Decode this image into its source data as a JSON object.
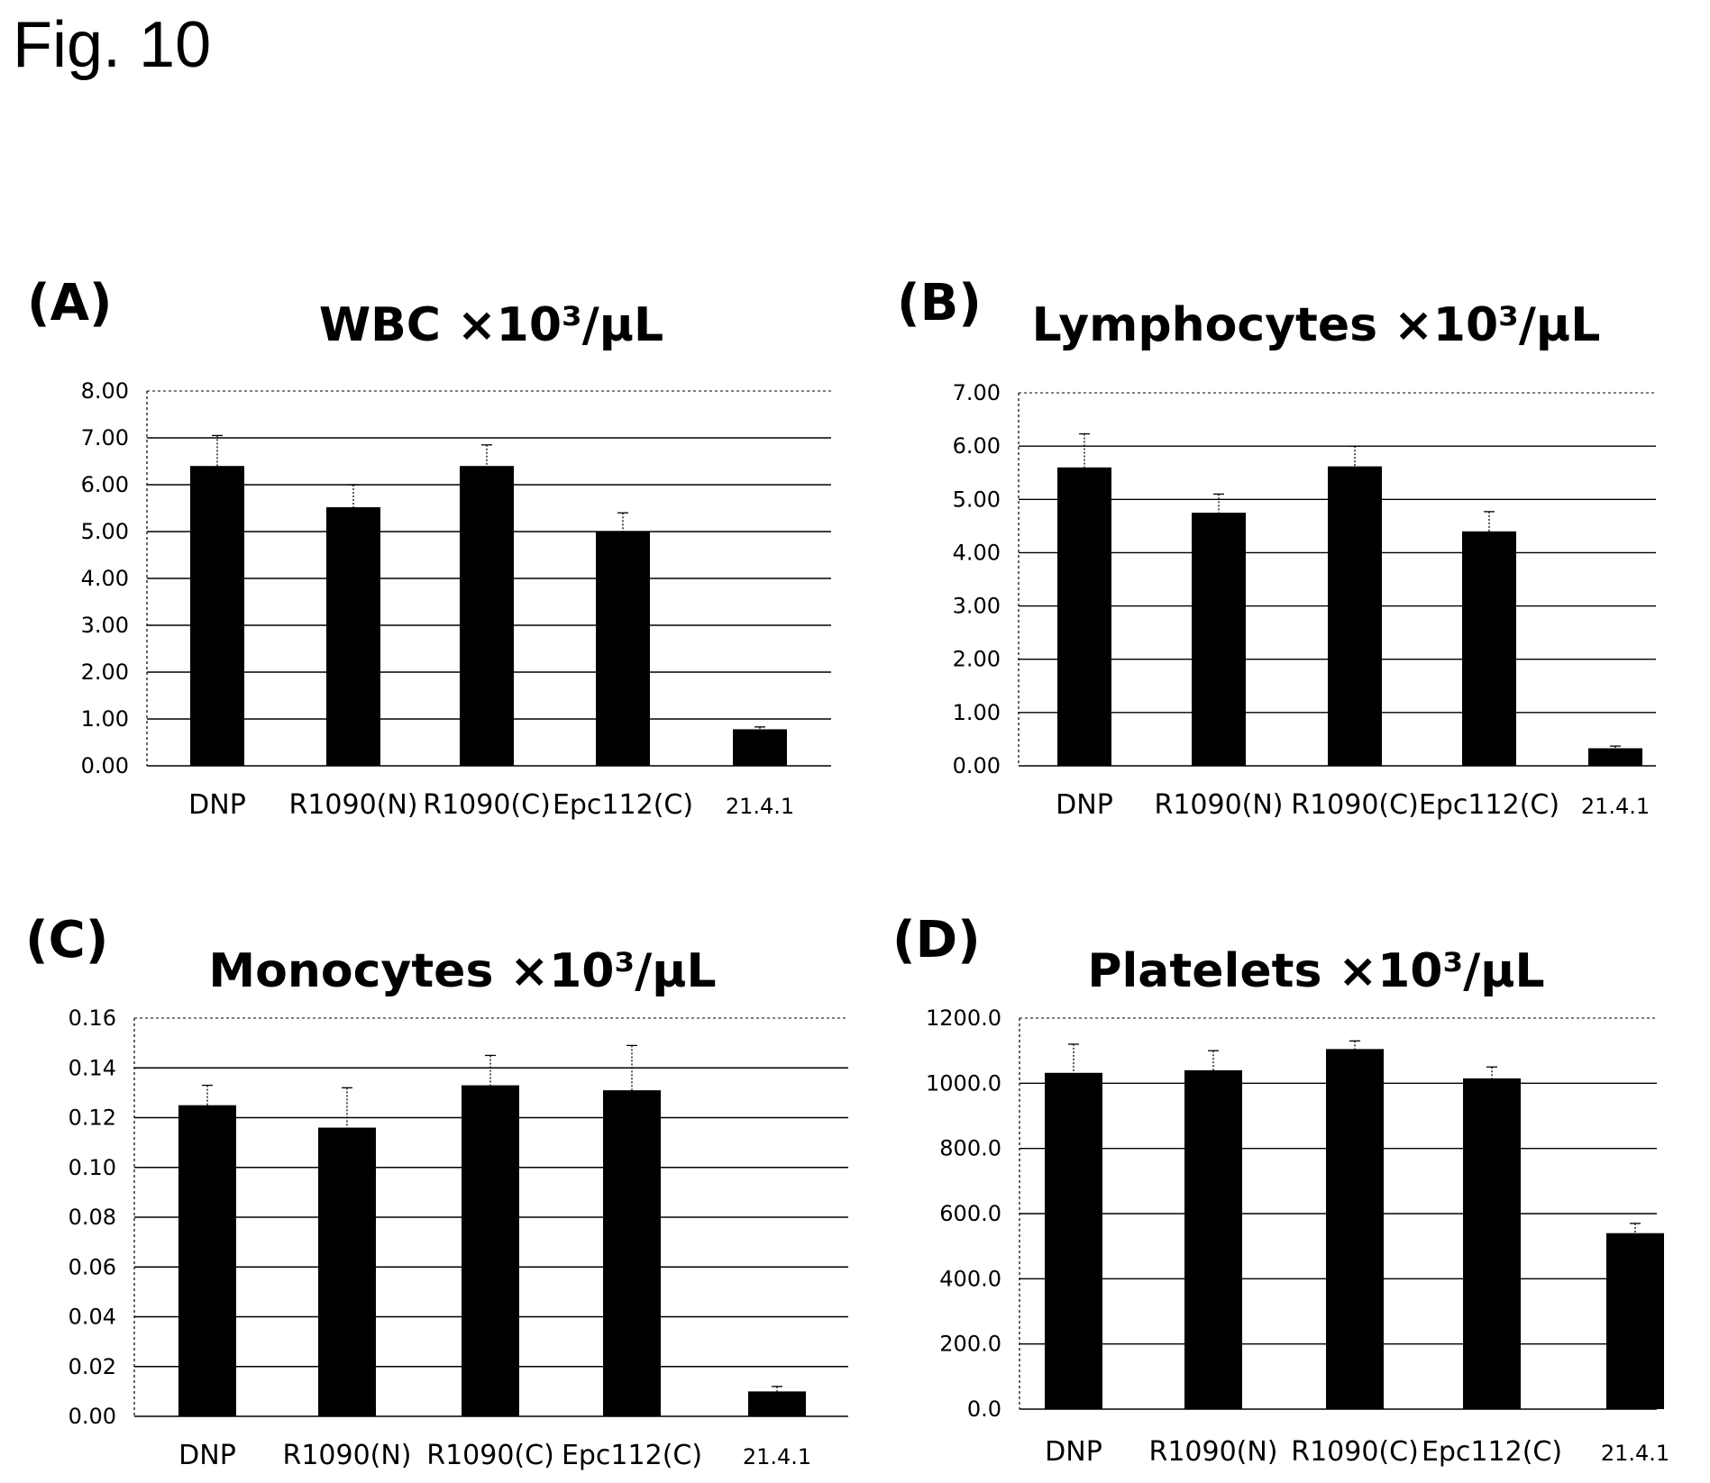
{
  "figure": {
    "title": "Fig. 10"
  },
  "style": {
    "bar_color": "#000000",
    "grid_color": "#000000",
    "background": "#ffffff"
  },
  "chart_data": [
    {
      "panel": "(A)",
      "type": "bar",
      "title": "WBC ×10³/μL",
      "xlabel": "",
      "ylabel": "",
      "categories": [
        "DNP",
        "R1090(N)",
        "R1090(C)",
        "Epc112(C)",
        "21.4.1"
      ],
      "values": [
        6.4,
        5.52,
        6.4,
        5.0,
        0.78
      ],
      "errors": [
        0.65,
        0.48,
        0.45,
        0.4,
        0.05
      ],
      "ylim": [
        0,
        8
      ],
      "yticks": [
        "0.00",
        "1.00",
        "2.00",
        "3.00",
        "4.00",
        "5.00",
        "6.00",
        "7.00",
        "8.00"
      ],
      "grid": true
    },
    {
      "panel": "(B)",
      "type": "bar",
      "title": "Lymphocytes ×10³/μL",
      "xlabel": "",
      "ylabel": "",
      "categories": [
        "DNP",
        "R1090(N)",
        "R1090(C)",
        "Epc112(C)",
        "21.4.1"
      ],
      "values": [
        5.6,
        4.75,
        5.62,
        4.4,
        0.33
      ],
      "errors": [
        0.63,
        0.35,
        0.38,
        0.37,
        0.04
      ],
      "ylim": [
        0,
        7
      ],
      "yticks": [
        "0.00",
        "1.00",
        "2.00",
        "3.00",
        "4.00",
        "5.00",
        "6.00",
        "7.00"
      ],
      "grid": true
    },
    {
      "panel": "(C)",
      "type": "bar",
      "title": "Monocytes ×10³/μL",
      "xlabel": "",
      "ylabel": "",
      "categories": [
        "DNP",
        "R1090(N)",
        "R1090(C)",
        "Epc112(C)",
        "21.4.1"
      ],
      "values": [
        0.125,
        0.116,
        0.133,
        0.131,
        0.01
      ],
      "errors": [
        0.008,
        0.016,
        0.012,
        0.018,
        0.002
      ],
      "ylim": [
        0,
        0.16
      ],
      "yticks": [
        "0.00",
        "0.02",
        "0.04",
        "0.06",
        "0.08",
        "0.10",
        "0.12",
        "0.14",
        "0.16"
      ],
      "grid": true
    },
    {
      "panel": "(D)",
      "type": "bar",
      "title": "Platelets ×10³/μL",
      "xlabel": "",
      "ylabel": "",
      "categories": [
        "DNP",
        "R1090(N)",
        "R1090(C)",
        "Epc112(C)",
        "21.4.1"
      ],
      "values": [
        1032,
        1040,
        1105,
        1015,
        540
      ],
      "errors": [
        88,
        60,
        25,
        35,
        30
      ],
      "ylim": [
        0,
        1200
      ],
      "yticks": [
        "0.0",
        "200.0",
        "400.0",
        "600.0",
        "800.0",
        "1000.0",
        "1200.0"
      ],
      "grid": true
    }
  ]
}
